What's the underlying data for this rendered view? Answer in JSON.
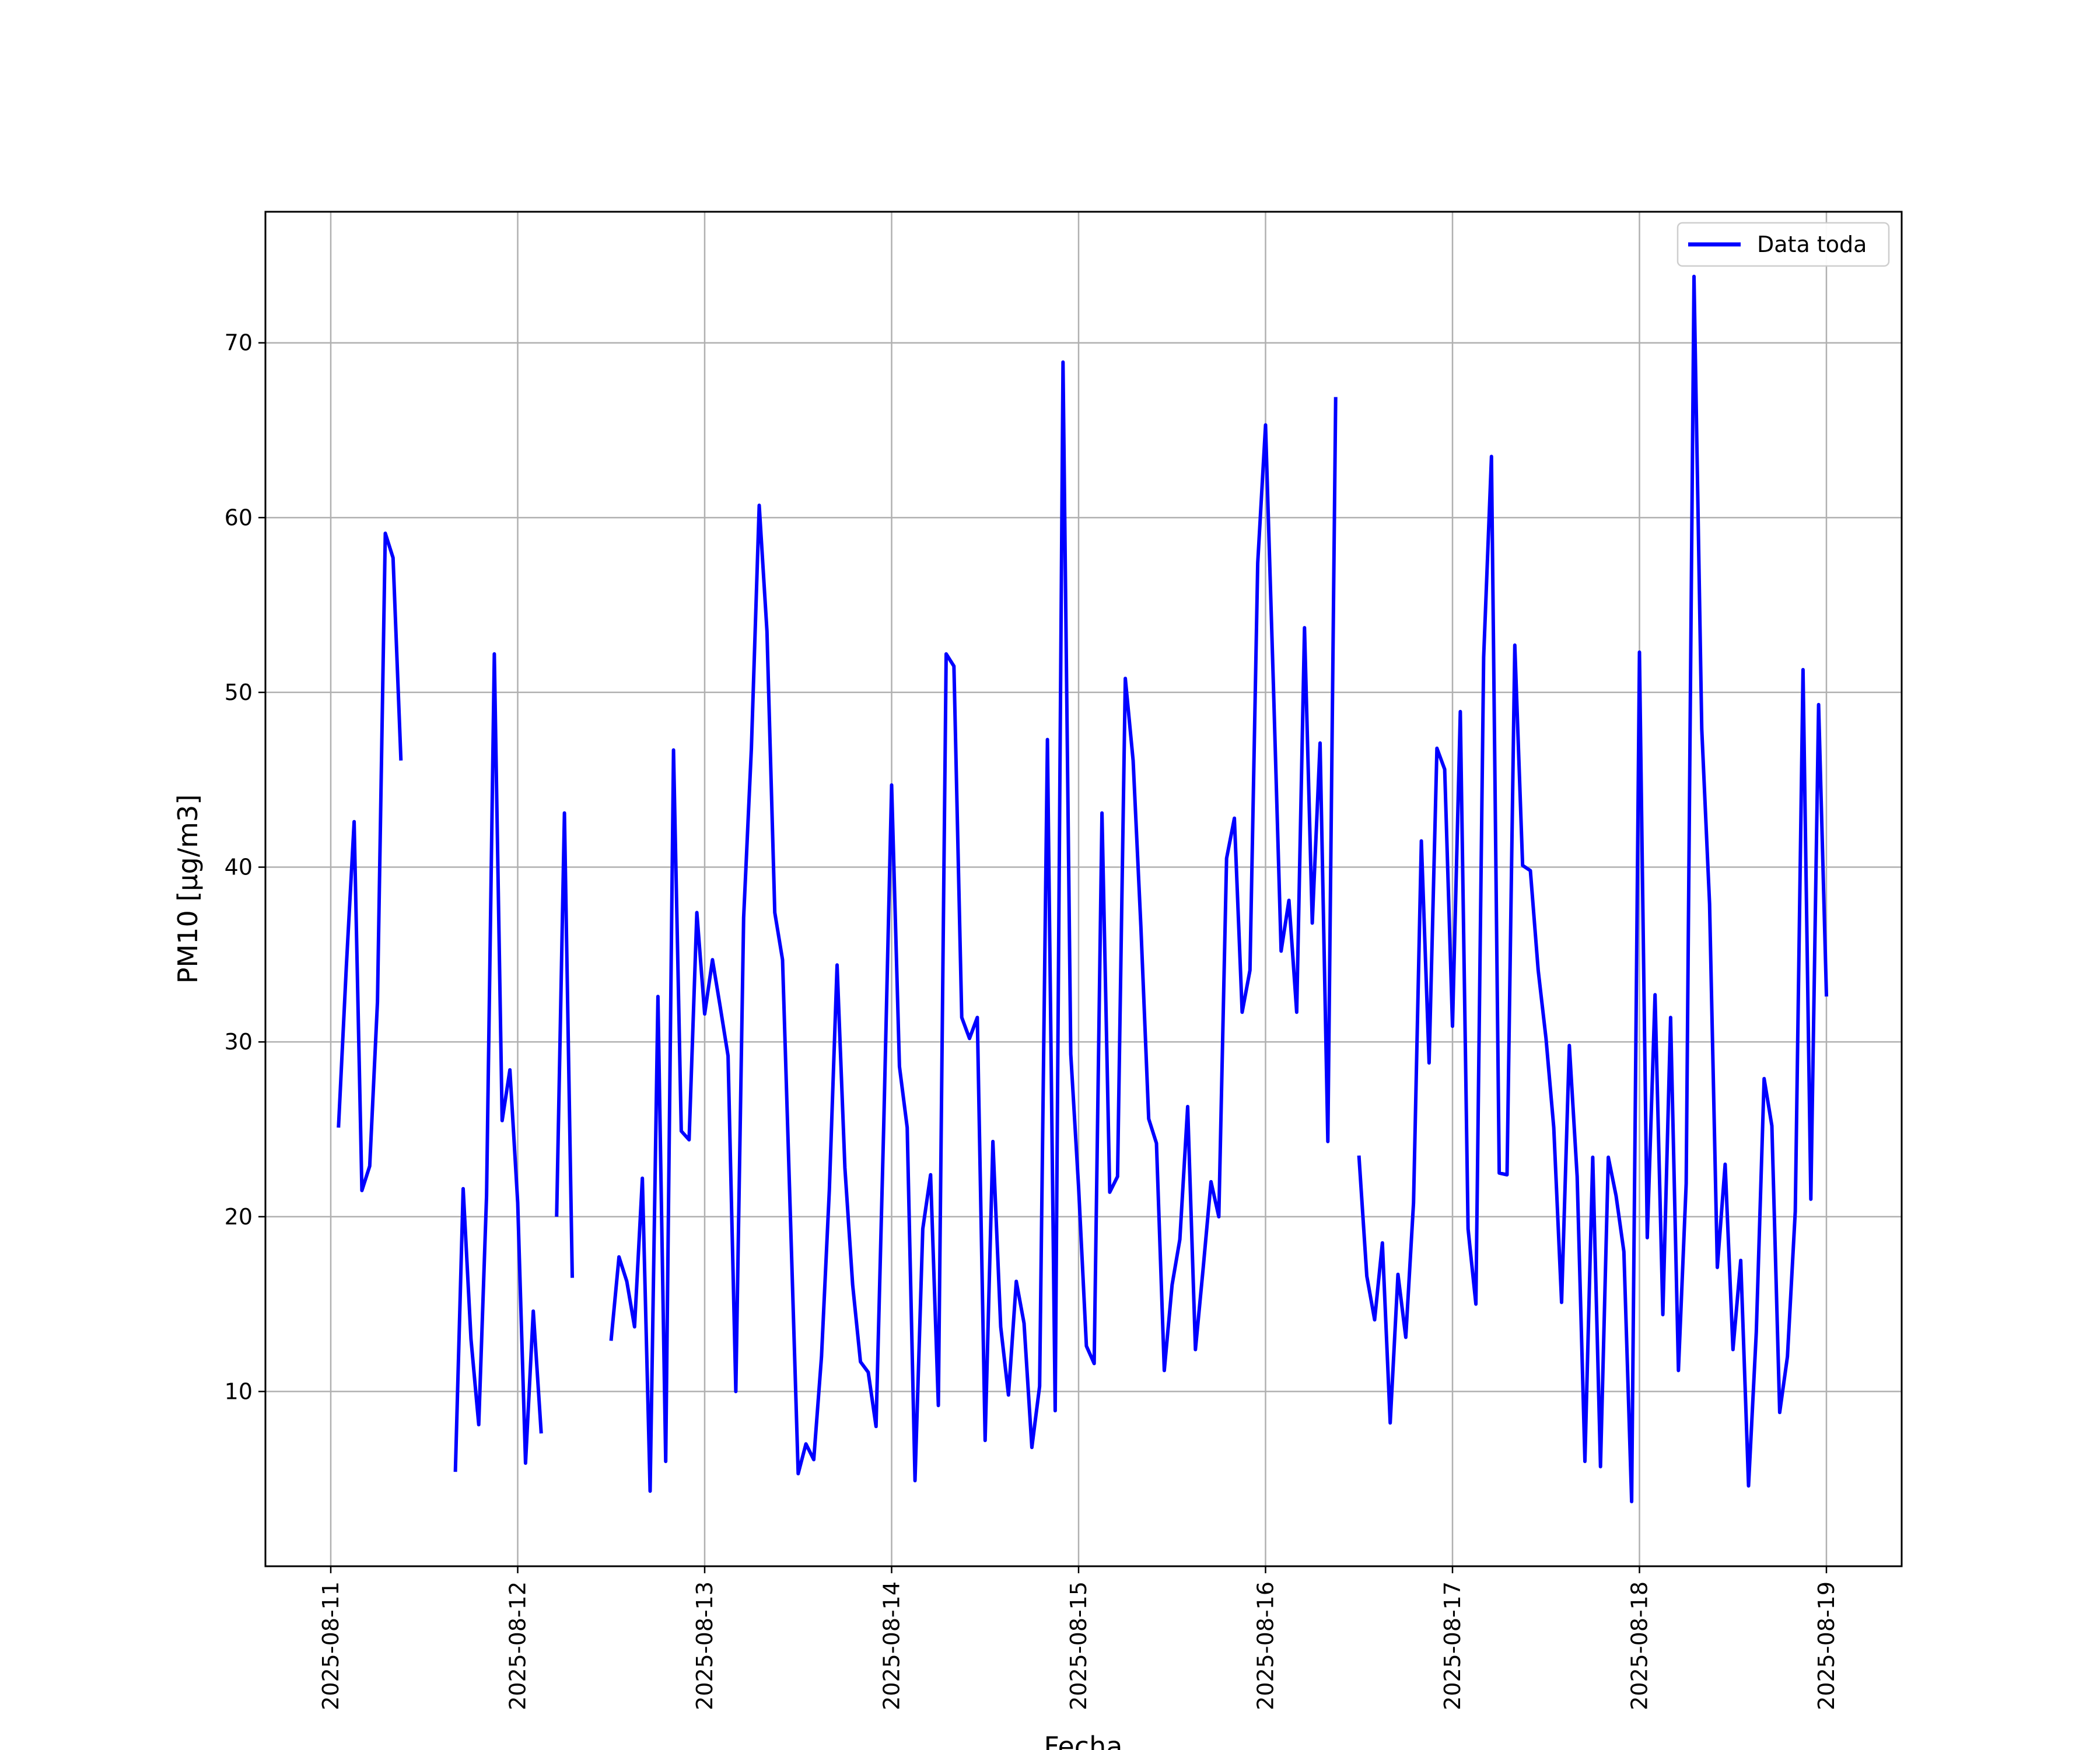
{
  "chart_data": {
    "type": "line",
    "xlabel": "Fecha",
    "ylabel": "PM10 [μg/m3]",
    "ylim": [
      0,
      77.5
    ],
    "y_ticks": [
      10,
      20,
      30,
      40,
      50,
      60,
      70
    ],
    "x_ticks": [
      "2025-08-11",
      "2025-08-12",
      "2025-08-13",
      "2025-08-14",
      "2025-08-15",
      "2025-08-16",
      "2025-08-17",
      "2025-08-18",
      "2025-08-19"
    ],
    "grid": true,
    "legend_position": "top-right",
    "series": [
      {
        "name": "Data toda",
        "color": "#0000ff",
        "points": [
          [
            "2025-08-11 01:00",
            25.2
          ],
          [
            "2025-08-11 02:00",
            34.3
          ],
          [
            "2025-08-11 03:00",
            42.6
          ],
          [
            "2025-08-11 04:00",
            21.5
          ],
          [
            "2025-08-11 05:00",
            22.9
          ],
          [
            "2025-08-11 06:00",
            32.3
          ],
          [
            "2025-08-11 07:00",
            59.1
          ],
          [
            "2025-08-11 08:00",
            57.7
          ],
          [
            "2025-08-11 09:00",
            46.2
          ],
          [
            "2025-08-11 10:00",
            null
          ],
          [
            "2025-08-11 16:00",
            5.5
          ],
          [
            "2025-08-11 17:00",
            21.6
          ],
          [
            "2025-08-11 18:00",
            13.0
          ],
          [
            "2025-08-11 19:00",
            8.1
          ],
          [
            "2025-08-11 20:00",
            21.2
          ],
          [
            "2025-08-11 21:00",
            52.2
          ],
          [
            "2025-08-11 22:00",
            25.5
          ],
          [
            "2025-08-11 23:00",
            28.4
          ],
          [
            "2025-08-12 00:00",
            20.8
          ],
          [
            "2025-08-12 01:00",
            5.9
          ],
          [
            "2025-08-12 02:00",
            14.6
          ],
          [
            "2025-08-12 03:00",
            7.7
          ],
          [
            "2025-08-12 04:00",
            null
          ],
          [
            "2025-08-12 05:00",
            20.1
          ],
          [
            "2025-08-12 06:00",
            43.1
          ],
          [
            "2025-08-12 07:00",
            16.6
          ],
          [
            "2025-08-12 08:00",
            null
          ],
          [
            "2025-08-12 12:00",
            13.0
          ],
          [
            "2025-08-12 13:00",
            17.7
          ],
          [
            "2025-08-12 14:00",
            16.3
          ],
          [
            "2025-08-12 15:00",
            13.7
          ],
          [
            "2025-08-12 16:00",
            22.2
          ],
          [
            "2025-08-12 17:00",
            4.3
          ],
          [
            "2025-08-12 18:00",
            32.6
          ],
          [
            "2025-08-12 19:00",
            6.0
          ],
          [
            "2025-08-12 20:00",
            46.7
          ],
          [
            "2025-08-12 21:00",
            24.9
          ],
          [
            "2025-08-12 22:00",
            24.4
          ],
          [
            "2025-08-12 23:00",
            37.4
          ],
          [
            "2025-08-13 00:00",
            31.6
          ],
          [
            "2025-08-13 01:00",
            34.7
          ],
          [
            "2025-08-13 02:00",
            32.0
          ],
          [
            "2025-08-13 03:00",
            29.2
          ],
          [
            "2025-08-13 04:00",
            10.0
          ],
          [
            "2025-08-13 05:00",
            37.1
          ],
          [
            "2025-08-13 06:00",
            46.8
          ],
          [
            "2025-08-13 07:00",
            60.7
          ],
          [
            "2025-08-13 08:00",
            53.5
          ],
          [
            "2025-08-13 09:00",
            37.4
          ],
          [
            "2025-08-13 10:00",
            34.7
          ],
          [
            "2025-08-13 11:00",
            20.1
          ],
          [
            "2025-08-13 12:00",
            5.3
          ],
          [
            "2025-08-13 13:00",
            7.0
          ],
          [
            "2025-08-13 14:00",
            6.1
          ],
          [
            "2025-08-13 15:00",
            12.0
          ],
          [
            "2025-08-13 16:00",
            21.5
          ],
          [
            "2025-08-13 17:00",
            34.4
          ],
          [
            "2025-08-13 18:00",
            22.8
          ],
          [
            "2025-08-13 19:00",
            16.1
          ],
          [
            "2025-08-13 20:00",
            11.7
          ],
          [
            "2025-08-13 21:00",
            11.1
          ],
          [
            "2025-08-13 22:00",
            8.0
          ],
          [
            "2025-08-13 23:00",
            25.4
          ],
          [
            "2025-08-14 00:00",
            44.7
          ],
          [
            "2025-08-14 01:00",
            28.6
          ],
          [
            "2025-08-14 02:00",
            25.1
          ],
          [
            "2025-08-14 03:00",
            4.9
          ],
          [
            "2025-08-14 04:00",
            19.3
          ],
          [
            "2025-08-14 05:00",
            22.4
          ],
          [
            "2025-08-14 06:00",
            9.2
          ],
          [
            "2025-08-14 07:00",
            52.2
          ],
          [
            "2025-08-14 08:00",
            51.5
          ],
          [
            "2025-08-14 09:00",
            31.4
          ],
          [
            "2025-08-14 10:00",
            30.2
          ],
          [
            "2025-08-14 11:00",
            31.4
          ],
          [
            "2025-08-14 12:00",
            7.2
          ],
          [
            "2025-08-14 13:00",
            24.3
          ],
          [
            "2025-08-14 14:00",
            13.7
          ],
          [
            "2025-08-14 15:00",
            9.8
          ],
          [
            "2025-08-14 16:00",
            16.3
          ],
          [
            "2025-08-14 17:00",
            13.9
          ],
          [
            "2025-08-14 18:00",
            6.8
          ],
          [
            "2025-08-14 19:00",
            10.3
          ],
          [
            "2025-08-14 20:00",
            47.3
          ],
          [
            "2025-08-14 21:00",
            8.9
          ],
          [
            "2025-08-14 22:00",
            68.9
          ],
          [
            "2025-08-14 23:00",
            29.3
          ],
          [
            "2025-08-15 00:00",
            21.7
          ],
          [
            "2025-08-15 01:00",
            12.6
          ],
          [
            "2025-08-15 02:00",
            11.6
          ],
          [
            "2025-08-15 03:00",
            43.1
          ],
          [
            "2025-08-15 04:00",
            21.4
          ],
          [
            "2025-08-15 05:00",
            22.3
          ],
          [
            "2025-08-15 06:00",
            50.8
          ],
          [
            "2025-08-15 07:00",
            46.1
          ],
          [
            "2025-08-15 08:00",
            36.6
          ],
          [
            "2025-08-15 09:00",
            25.6
          ],
          [
            "2025-08-15 10:00",
            24.2
          ],
          [
            "2025-08-15 11:00",
            11.2
          ],
          [
            "2025-08-15 12:00",
            16.1
          ],
          [
            "2025-08-15 13:00",
            18.7
          ],
          [
            "2025-08-15 14:00",
            26.3
          ],
          [
            "2025-08-15 15:00",
            12.4
          ],
          [
            "2025-08-15 16:00",
            17.1
          ],
          [
            "2025-08-15 17:00",
            22.0
          ],
          [
            "2025-08-15 18:00",
            20.0
          ],
          [
            "2025-08-15 19:00",
            40.5
          ],
          [
            "2025-08-15 20:00",
            42.8
          ],
          [
            "2025-08-15 21:00",
            31.7
          ],
          [
            "2025-08-15 22:00",
            34.1
          ],
          [
            "2025-08-15 23:00",
            57.4
          ],
          [
            "2025-08-16 00:00",
            65.3
          ],
          [
            "2025-08-16 01:00",
            50.5
          ],
          [
            "2025-08-16 02:00",
            35.2
          ],
          [
            "2025-08-16 03:00",
            38.1
          ],
          [
            "2025-08-16 04:00",
            31.7
          ],
          [
            "2025-08-16 05:00",
            53.7
          ],
          [
            "2025-08-16 06:00",
            36.8
          ],
          [
            "2025-08-16 07:00",
            47.1
          ],
          [
            "2025-08-16 08:00",
            24.3
          ],
          [
            "2025-08-16 09:00",
            66.8
          ],
          [
            "2025-08-16 10:00",
            null
          ],
          [
            "2025-08-16 12:00",
            23.4
          ],
          [
            "2025-08-16 13:00",
            16.6
          ],
          [
            "2025-08-16 14:00",
            14.1
          ],
          [
            "2025-08-16 15:00",
            18.5
          ],
          [
            "2025-08-16 16:00",
            8.2
          ],
          [
            "2025-08-16 17:00",
            16.7
          ],
          [
            "2025-08-16 18:00",
            13.1
          ],
          [
            "2025-08-16 19:00",
            20.8
          ],
          [
            "2025-08-16 20:00",
            41.5
          ],
          [
            "2025-08-16 21:00",
            28.8
          ],
          [
            "2025-08-16 22:00",
            46.8
          ],
          [
            "2025-08-16 23:00",
            45.6
          ],
          [
            "2025-08-17 00:00",
            30.9
          ],
          [
            "2025-08-17 01:00",
            48.9
          ],
          [
            "2025-08-17 02:00",
            19.3
          ],
          [
            "2025-08-17 03:00",
            15.0
          ],
          [
            "2025-08-17 04:00",
            52.0
          ],
          [
            "2025-08-17 05:00",
            63.5
          ],
          [
            "2025-08-17 06:00",
            22.5
          ],
          [
            "2025-08-17 07:00",
            22.4
          ],
          [
            "2025-08-17 08:00",
            52.7
          ],
          [
            "2025-08-17 09:00",
            40.1
          ],
          [
            "2025-08-17 10:00",
            39.8
          ],
          [
            "2025-08-17 11:00",
            34.1
          ],
          [
            "2025-08-17 12:00",
            30.2
          ],
          [
            "2025-08-17 13:00",
            25.1
          ],
          [
            "2025-08-17 14:00",
            15.1
          ],
          [
            "2025-08-17 15:00",
            29.8
          ],
          [
            "2025-08-17 16:00",
            22.3
          ],
          [
            "2025-08-17 17:00",
            6.0
          ],
          [
            "2025-08-17 18:00",
            23.4
          ],
          [
            "2025-08-17 19:00",
            5.7
          ],
          [
            "2025-08-17 20:00",
            23.4
          ],
          [
            "2025-08-17 21:00",
            21.2
          ],
          [
            "2025-08-17 22:00",
            18.0
          ],
          [
            "2025-08-17 23:00",
            3.7
          ],
          [
            "2025-08-18 00:00",
            52.3
          ],
          [
            "2025-08-18 01:00",
            18.8
          ],
          [
            "2025-08-18 02:00",
            32.7
          ],
          [
            "2025-08-18 03:00",
            14.4
          ],
          [
            "2025-08-18 04:00",
            31.4
          ],
          [
            "2025-08-18 05:00",
            11.2
          ],
          [
            "2025-08-18 06:00",
            21.9
          ],
          [
            "2025-08-18 07:00",
            73.8
          ],
          [
            "2025-08-18 08:00",
            47.9
          ],
          [
            "2025-08-18 09:00",
            37.9
          ],
          [
            "2025-08-18 10:00",
            17.1
          ],
          [
            "2025-08-18 11:00",
            23.0
          ],
          [
            "2025-08-18 12:00",
            12.4
          ],
          [
            "2025-08-18 13:00",
            17.5
          ],
          [
            "2025-08-18 14:00",
            4.6
          ],
          [
            "2025-08-18 15:00",
            13.4
          ],
          [
            "2025-08-18 16:00",
            27.9
          ],
          [
            "2025-08-18 17:00",
            25.2
          ],
          [
            "2025-08-18 18:00",
            8.8
          ],
          [
            "2025-08-18 19:00",
            12.0
          ],
          [
            "2025-08-18 20:00",
            20.3
          ],
          [
            "2025-08-18 21:00",
            51.3
          ],
          [
            "2025-08-18 22:00",
            21.0
          ],
          [
            "2025-08-18 23:00",
            49.3
          ],
          [
            "2025-08-19 00:00",
            32.7
          ]
        ]
      }
    ]
  }
}
